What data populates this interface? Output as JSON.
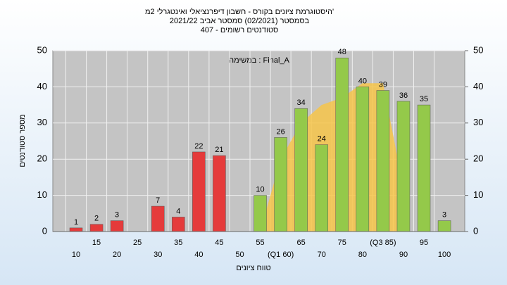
{
  "chart_data": {
    "type": "bar",
    "title_lines": [
      "היסטוגרמת ציונים בקורס - חשבון דיפרנציאלי ואינטגרלי 2מ'",
      "בסמסטר (02/2021) סמסטר אביב 2021/22",
      "סטודנטים רשומים - 407"
    ],
    "annotation": "במשימה : Final_A",
    "xlabel": "טווח ציונים",
    "ylabel": "מספר סטודנטים",
    "categories": [
      "10",
      "15",
      "20",
      "25",
      "30",
      "35",
      "40",
      "45",
      "50",
      "55",
      "(Q1 60)",
      "65",
      "70",
      "75",
      "80",
      "(Q3 85)",
      "90",
      "95",
      "100"
    ],
    "values": [
      1,
      2,
      3,
      0,
      7,
      4,
      22,
      21,
      0,
      10,
      26,
      34,
      24,
      48,
      40,
      39,
      36,
      35,
      3
    ],
    "bar_colors": [
      "#e53b3b",
      "#e53b3b",
      "#e53b3b",
      "#e53b3b",
      "#e53b3b",
      "#e53b3b",
      "#e53b3b",
      "#e53b3b",
      "#e53b3b",
      "#94c94a",
      "#94c94a",
      "#94c94a",
      "#94c94a",
      "#94c94a",
      "#94c94a",
      "#94c94a",
      "#94c94a",
      "#94c94a",
      "#94c94a"
    ],
    "area": {
      "color": "#f7c64a",
      "values": [
        null,
        null,
        null,
        null,
        null,
        null,
        null,
        null,
        null,
        0,
        20,
        30,
        35,
        37,
        41,
        41,
        12,
        null,
        null
      ]
    },
    "ylim": [
      0,
      50
    ],
    "yticks": [
      0,
      10,
      20,
      30,
      40,
      50
    ],
    "y2lim": [
      0,
      50
    ],
    "y2ticks": [
      0,
      10,
      20,
      30,
      40,
      50
    ],
    "grid": true
  }
}
